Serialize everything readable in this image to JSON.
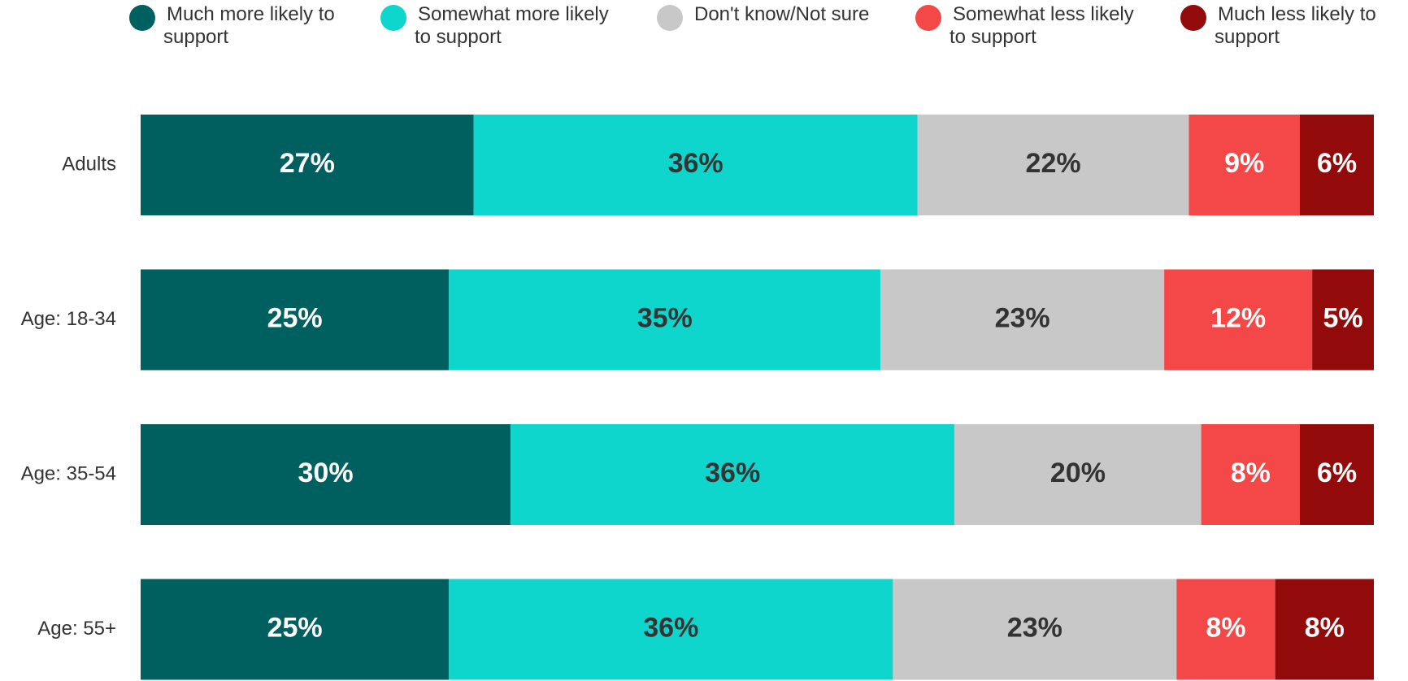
{
  "chart_data": {
    "type": "stacked-bar-horizontal",
    "categories": [
      "Adults",
      "Age: 18-34",
      "Age: 35-54",
      "Age: 55+"
    ],
    "series": [
      {
        "name": "Much more likely to support",
        "color": "#006060",
        "label_color": "#ffffff",
        "values": [
          27,
          25,
          30,
          25
        ],
        "value_labels": [
          "27%",
          "25%",
          "30%",
          "25%"
        ]
      },
      {
        "name": "Somewhat more likely to support",
        "color": "#0fd6cc",
        "label_color": "#333333",
        "values": [
          36,
          35,
          36,
          36
        ],
        "value_labels": [
          "36%",
          "35%",
          "36%",
          "36%"
        ]
      },
      {
        "name": "Don't know/Not sure",
        "color": "#c8c8c8",
        "label_color": "#333333",
        "values": [
          22,
          23,
          20,
          23
        ],
        "value_labels": [
          "22%",
          "23%",
          "20%",
          "23%"
        ]
      },
      {
        "name": "Somewhat less likely to support",
        "color": "#f44848",
        "label_color": "#ffffff",
        "values": [
          9,
          12,
          8,
          8
        ],
        "value_labels": [
          "9%",
          "12%",
          "8%",
          "8%"
        ]
      },
      {
        "name": "Much less likely to support",
        "color": "#920a0a",
        "label_color": "#ffffff",
        "values": [
          6,
          5,
          6,
          8
        ],
        "value_labels": [
          "6%",
          "5%",
          "6%",
          "8%"
        ]
      }
    ],
    "legend": "top"
  }
}
